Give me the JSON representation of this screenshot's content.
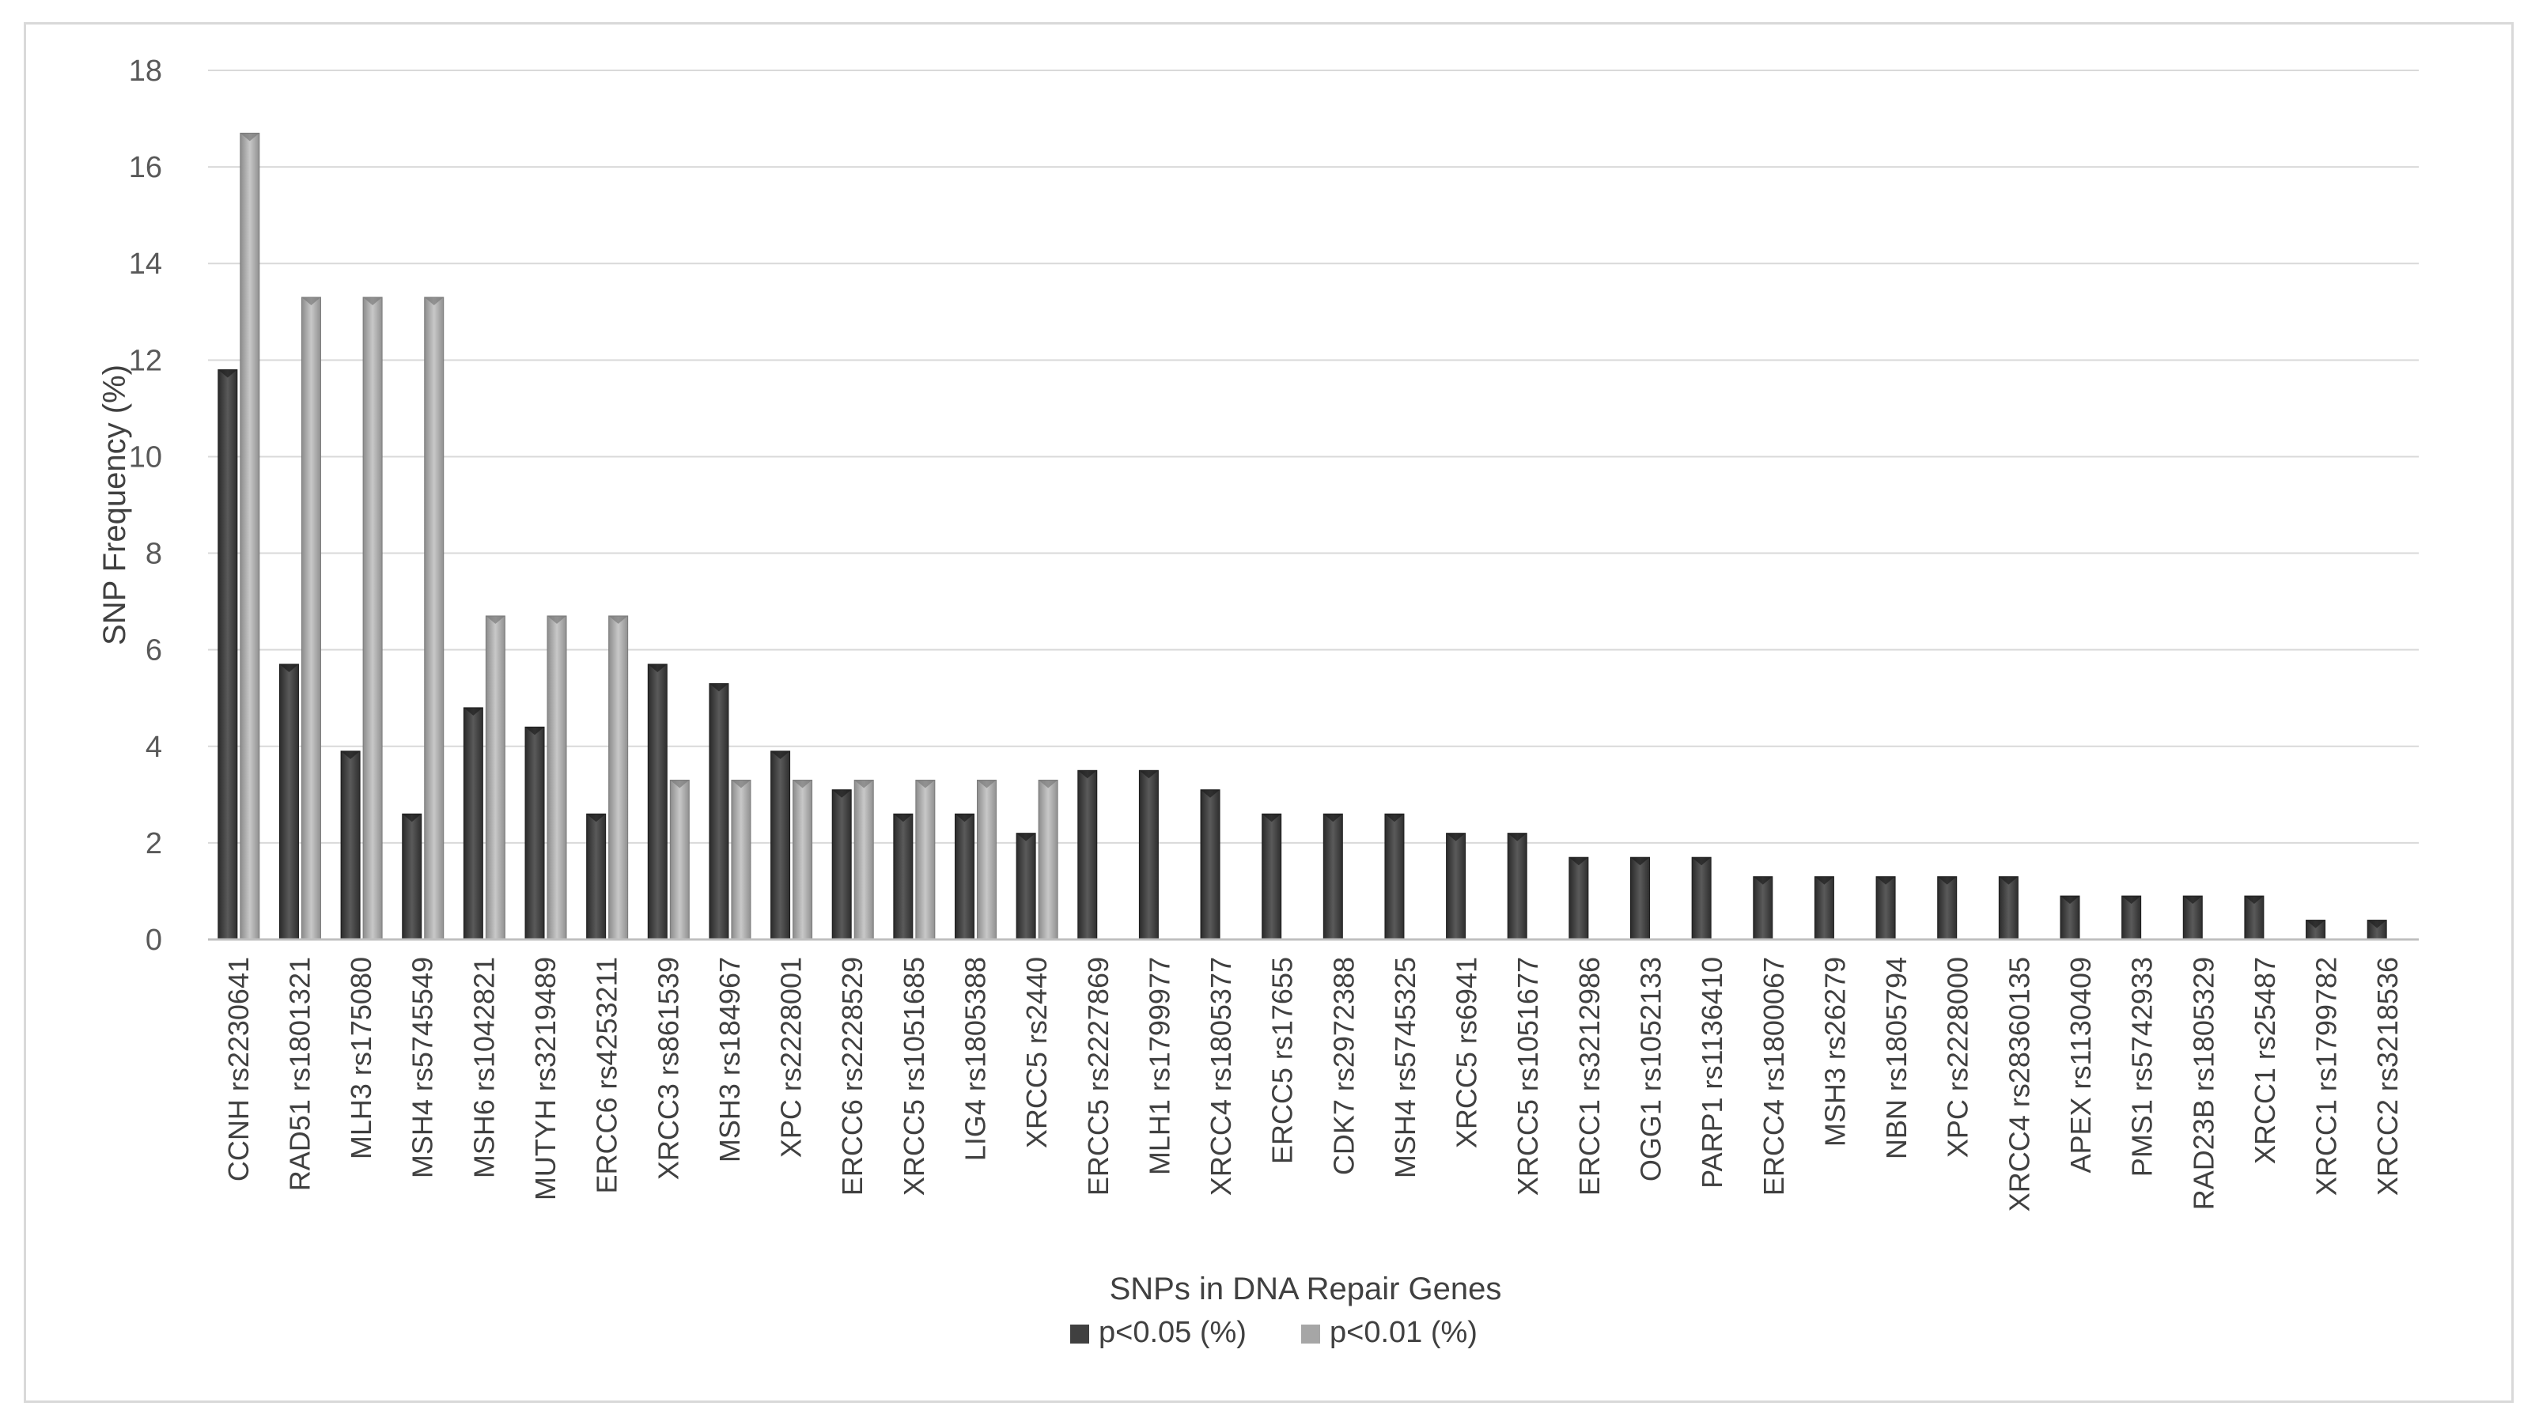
{
  "chart_data": {
    "type": "bar",
    "title": "",
    "xlabel": "SNPs in DNA Repair Genes",
    "ylabel": "SNP Frequency (%)",
    "ylim": [
      0,
      18
    ],
    "yticks": [
      0,
      2,
      4,
      6,
      8,
      10,
      12,
      14,
      16,
      18
    ],
    "grid": true,
    "legend_position": "bottom",
    "categories": [
      "CCNH rs2230641",
      "RAD51 rs1801321",
      "MLH3 rs175080",
      "MSH4 rs5745549",
      "MSH6 rs1042821",
      "MUTYH rs3219489",
      "ERCC6 rs4253211",
      "XRCC3 rs861539",
      "MSH3 rs184967",
      "XPC rs2228001",
      "ERCC6 rs2228529",
      "XRCC5 rs1051685",
      "LIG4 rs1805388",
      "XRCC5 rs2440",
      "ERCC5 rs2227869",
      "MLH1 rs1799977",
      "XRCC4 rs1805377",
      "ERCC5 rs17655",
      "CDK7 rs2972388",
      "MSH4 rs5745325",
      "XRCC5 rs6941",
      "XRCC5 rs1051677",
      "ERCC1 rs3212986",
      "OGG1 rs1052133",
      "PARP1 rs1136410",
      "ERCC4 rs1800067",
      "MSH3 rs26279",
      "NBN rs1805794",
      "XPC rs2228000",
      "XRCC4 rs28360135",
      "APEX rs1130409",
      "PMS1 rs5742933",
      "RAD23B rs1805329",
      "XRCC1 rs25487",
      "XRCC1 rs1799782",
      "XRCC2 rs3218536"
    ],
    "series": [
      {
        "name": "p<0.05 (%)",
        "color": "#404040",
        "values": [
          11.8,
          5.7,
          3.9,
          2.6,
          4.8,
          4.4,
          2.6,
          5.7,
          5.3,
          3.9,
          3.1,
          2.6,
          2.6,
          2.2,
          3.5,
          3.5,
          3.1,
          2.6,
          2.6,
          2.6,
          2.2,
          2.2,
          1.7,
          1.7,
          1.7,
          1.3,
          1.3,
          1.3,
          1.3,
          1.3,
          0.9,
          0.9,
          0.9,
          0.9,
          0.4,
          0.4
        ]
      },
      {
        "name": "p<0.01 (%)",
        "color": "#a6a6a6",
        "values": [
          16.7,
          13.3,
          13.3,
          13.3,
          6.7,
          6.7,
          6.7,
          3.3,
          3.3,
          3.3,
          3.3,
          3.3,
          3.3,
          3.3,
          0,
          0,
          0,
          0,
          0,
          0,
          0,
          0,
          0,
          0,
          0,
          0,
          0,
          0,
          0,
          0,
          0,
          0,
          0,
          0,
          0,
          0
        ]
      }
    ]
  }
}
